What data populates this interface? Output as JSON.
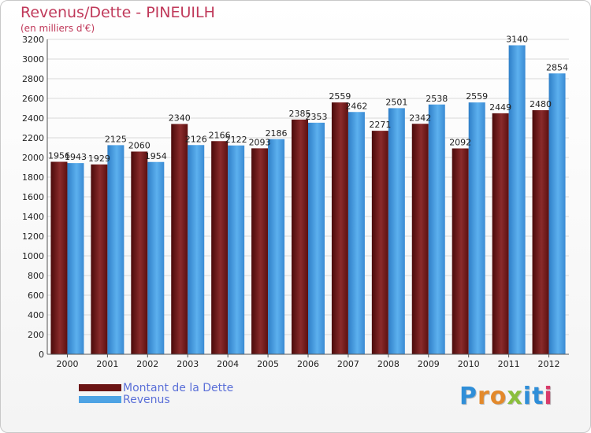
{
  "header": {
    "title": "Revenus/Dette - PINEUILH",
    "subtitle": "(en milliers d'€)"
  },
  "legend": {
    "items": [
      {
        "label": "Montant de la Dette"
      },
      {
        "label": "Revenus"
      }
    ]
  },
  "brand": {
    "text": "Proxiti",
    "letter_colors": [
      "#2f8ed8",
      "#e3892b",
      "#e3892b",
      "#8bbf3c",
      "#2f8ed8",
      "#2f8ed8",
      "#d83a6a"
    ]
  },
  "colors": {
    "dette": "#6b1414",
    "revenus": "#4ea3e4",
    "title": "#c0395a"
  },
  "chart_data": {
    "type": "bar",
    "title": "Revenus/Dette - PINEUILH",
    "subtitle": "(en milliers d'€)",
    "categories": [
      "2000",
      "2001",
      "2002",
      "2003",
      "2004",
      "2005",
      "2006",
      "2007",
      "2008",
      "2009",
      "2010",
      "2011",
      "2012"
    ],
    "series": [
      {
        "name": "Montant de la Dette",
        "values": [
          1956,
          1929,
          2060,
          2340,
          2166,
          2093,
          2385,
          2559,
          2271,
          2342,
          2092,
          2449,
          2480
        ],
        "labels": [
          "1956",
          "1929",
          "2060",
          "2340",
          "2166",
          "2093",
          "2385",
          "2559",
          "2271",
          "2342",
          "2092",
          "2449",
          "2480"
        ]
      },
      {
        "name": "Revenus",
        "values": [
          1943,
          2125,
          1954,
          2126,
          2122,
          2186,
          2353,
          2462,
          2501,
          2538,
          2559,
          3140,
          2854
        ],
        "labels": [
          "1943",
          "2125",
          "1954",
          "2126",
          "2122",
          "2186",
          "2353",
          "2462",
          "2501",
          "2538",
          "2559",
          "3140",
          "2854"
        ]
      }
    ],
    "ylim": [
      0,
      3200
    ],
    "yticks": [
      0,
      200,
      400,
      600,
      800,
      1000,
      1200,
      1400,
      1600,
      1800,
      2000,
      2200,
      2400,
      2600,
      2800,
      3000,
      3200
    ],
    "grid": true,
    "legend_position": "bottom-left"
  }
}
